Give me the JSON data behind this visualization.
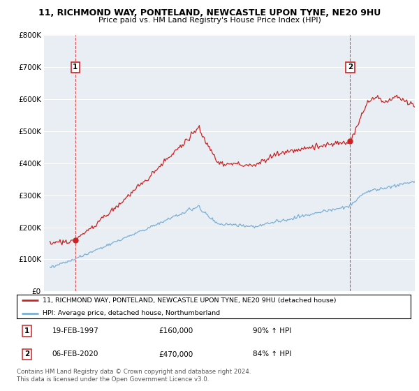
{
  "title1": "11, RICHMOND WAY, PONTELAND, NEWCASTLE UPON TYNE, NE20 9HU",
  "title2": "Price paid vs. HM Land Registry's House Price Index (HPI)",
  "legend_line1": "11, RICHMOND WAY, PONTELAND, NEWCASTLE UPON TYNE, NE20 9HU (detached house)",
  "legend_line2": "HPI: Average price, detached house, Northumberland",
  "annotation1_date": "19-FEB-1997",
  "annotation1_price": "£160,000",
  "annotation1_hpi": "90% ↑ HPI",
  "annotation2_date": "06-FEB-2020",
  "annotation2_price": "£470,000",
  "annotation2_hpi": "84% ↑ HPI",
  "footnote": "Contains HM Land Registry data © Crown copyright and database right 2024.\nThis data is licensed under the Open Government Licence v3.0.",
  "sale1_year": 1997.12,
  "sale1_value": 160000,
  "sale2_year": 2020.09,
  "sale2_value": 470000,
  "red_color": "#cc2222",
  "blue_color": "#7bafd4",
  "dashed_color": "#cc2222",
  "background_color": "#ffffff",
  "plot_bg_color": "#e8eef4",
  "grid_color": "#ffffff",
  "ylim": [
    0,
    800000
  ],
  "xlim_start": 1994.5,
  "xlim_end": 2025.5,
  "yticks": [
    0,
    100000,
    200000,
    300000,
    400000,
    500000,
    600000,
    700000,
    800000
  ]
}
